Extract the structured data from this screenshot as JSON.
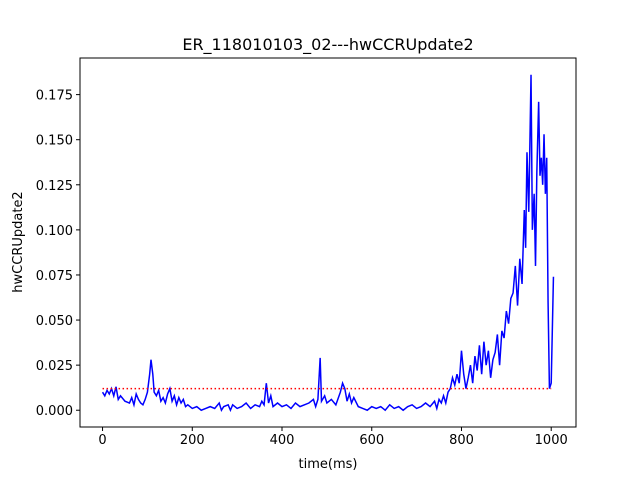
{
  "chart_data": {
    "type": "line",
    "title": "ER_118010103_02---hwCCRUpdate2",
    "x_label": "time(ms)",
    "y_label": "hwCCRUpdate2",
    "x": [
      0,
      5,
      10,
      15,
      20,
      25,
      30,
      35,
      40,
      50,
      60,
      65,
      70,
      75,
      80,
      85,
      90,
      95,
      100,
      105,
      108,
      112,
      115,
      120,
      125,
      130,
      135,
      140,
      145,
      150,
      155,
      160,
      165,
      170,
      175,
      180,
      185,
      190,
      200,
      210,
      220,
      230,
      240,
      250,
      260,
      265,
      270,
      280,
      285,
      290,
      300,
      310,
      320,
      330,
      340,
      350,
      355,
      360,
      365,
      370,
      375,
      380,
      390,
      400,
      410,
      420,
      430,
      440,
      450,
      460,
      470,
      475,
      480,
      485,
      488,
      495,
      500,
      510,
      520,
      530,
      535,
      540,
      545,
      550,
      555,
      560,
      570,
      580,
      590,
      600,
      610,
      620,
      630,
      640,
      650,
      660,
      670,
      680,
      690,
      700,
      710,
      720,
      730,
      740,
      745,
      750,
      755,
      760,
      765,
      770,
      775,
      780,
      785,
      790,
      795,
      800,
      805,
      810,
      815,
      820,
      825,
      830,
      835,
      840,
      845,
      850,
      855,
      860,
      865,
      870,
      875,
      880,
      885,
      890,
      895,
      900,
      905,
      910,
      915,
      920,
      925,
      930,
      935,
      940,
      943,
      946,
      950,
      955,
      958,
      962,
      965,
      968,
      972,
      975,
      978,
      981,
      984,
      987,
      990,
      993,
      996,
      1000,
      1005
    ],
    "series": [
      {
        "name": "hwCCRUpdate2",
        "color": "#0000ff",
        "values": [
          0.01,
          0.008,
          0.011,
          0.009,
          0.012,
          0.008,
          0.013,
          0.006,
          0.008,
          0.005,
          0.004,
          0.007,
          0.003,
          0.009,
          0.006,
          0.004,
          0.003,
          0.006,
          0.01,
          0.02,
          0.028,
          0.02,
          0.01,
          0.008,
          0.011,
          0.005,
          0.007,
          0.004,
          0.009,
          0.012,
          0.005,
          0.008,
          0.003,
          0.007,
          0.004,
          0.006,
          0.002,
          0.003,
          0.001,
          0.002,
          0.0,
          0.001,
          0.002,
          0.001,
          0.004,
          0.0,
          0.002,
          0.003,
          0.0,
          0.003,
          0.001,
          0.002,
          0.004,
          0.001,
          0.003,
          0.002,
          0.005,
          0.003,
          0.015,
          0.004,
          0.008,
          0.002,
          0.004,
          0.002,
          0.003,
          0.001,
          0.004,
          0.002,
          0.003,
          0.004,
          0.006,
          0.002,
          0.006,
          0.029,
          0.005,
          0.008,
          0.004,
          0.006,
          0.003,
          0.01,
          0.015,
          0.012,
          0.005,
          0.009,
          0.004,
          0.007,
          0.002,
          0.001,
          0.0,
          0.002,
          0.001,
          0.002,
          0.0,
          0.003,
          0.001,
          0.002,
          0.0,
          0.002,
          0.003,
          0.001,
          0.002,
          0.004,
          0.002,
          0.005,
          0.001,
          0.006,
          0.004,
          0.008,
          0.004,
          0.01,
          0.012,
          0.018,
          0.014,
          0.02,
          0.015,
          0.033,
          0.02,
          0.012,
          0.018,
          0.025,
          0.015,
          0.03,
          0.022,
          0.036,
          0.02,
          0.038,
          0.025,
          0.033,
          0.018,
          0.028,
          0.032,
          0.042,
          0.025,
          0.044,
          0.04,
          0.055,
          0.048,
          0.062,
          0.065,
          0.08,
          0.058,
          0.084,
          0.07,
          0.111,
          0.09,
          0.143,
          0.11,
          0.186,
          0.1,
          0.12,
          0.08,
          0.132,
          0.171,
          0.13,
          0.14,
          0.125,
          0.153,
          0.12,
          0.14,
          0.06,
          0.012,
          0.015,
          0.074
        ]
      }
    ],
    "hlines": [
      {
        "y": 0.012,
        "xmin": 0,
        "xmax": 1000,
        "color": "#ff0000"
      }
    ],
    "xlim": [
      -50.25,
      1055.25
    ],
    "xticks": [
      0,
      200,
      400,
      600,
      800,
      1000
    ],
    "ylim": [
      -0.0093,
      0.1953
    ],
    "yticks": [
      {
        "value": 0,
        "label": "0.000"
      },
      {
        "value": 0.025,
        "label": "0.025"
      },
      {
        "value": 0.05,
        "label": "0.050"
      },
      {
        "value": 0.075,
        "label": "0.075"
      },
      {
        "value": 0.1,
        "label": "0.100"
      },
      {
        "value": 0.125,
        "label": "0.125"
      },
      {
        "value": 0.15,
        "label": "0.150"
      },
      {
        "value": 0.175,
        "label": "0.175"
      }
    ]
  }
}
